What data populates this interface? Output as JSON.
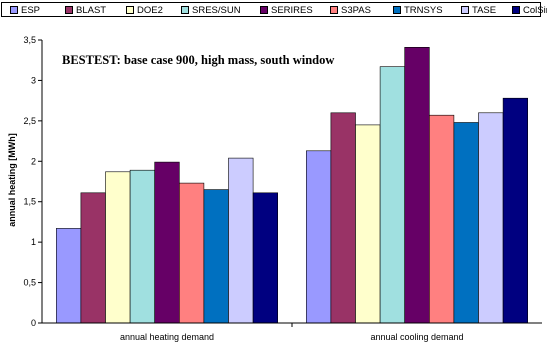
{
  "chart_data": {
    "type": "bar",
    "title": "BESTEST: base case 900, high mass, south window",
    "ylabel": "annual heating [MWh]",
    "xlabel": "",
    "ylim": [
      0,
      3.5
    ],
    "ytick_labels": [
      "0",
      "0,5",
      "1",
      "1,5",
      "2",
      "2,5",
      "3",
      "3,5"
    ],
    "grid": false,
    "legend_position": "top",
    "categories": [
      "annual heating demand",
      "annual cooling demand"
    ],
    "series": [
      {
        "name": "ESP",
        "color": "#9999ff",
        "values": [
          1.17,
          2.13
        ]
      },
      {
        "name": "BLAST",
        "color": "#993366",
        "values": [
          1.61,
          2.6
        ]
      },
      {
        "name": "DOE2",
        "color": "#ffffcc",
        "values": [
          1.87,
          2.45
        ]
      },
      {
        "name": "SRES/SUN",
        "color": "#a0e0e0",
        "values": [
          1.89,
          3.17
        ]
      },
      {
        "name": "SERIRES",
        "color": "#660066",
        "values": [
          1.99,
          3.41
        ]
      },
      {
        "name": "S3PAS",
        "color": "#ff8080",
        "values": [
          1.73,
          2.57
        ]
      },
      {
        "name": "TRNSYS",
        "color": "#0070c0",
        "values": [
          1.65,
          2.48
        ]
      },
      {
        "name": "TASE",
        "color": "#ccccff",
        "values": [
          2.04,
          2.6
        ]
      },
      {
        "name": "ColSim",
        "color": "#000080",
        "values": [
          1.61,
          2.78
        ]
      }
    ]
  }
}
